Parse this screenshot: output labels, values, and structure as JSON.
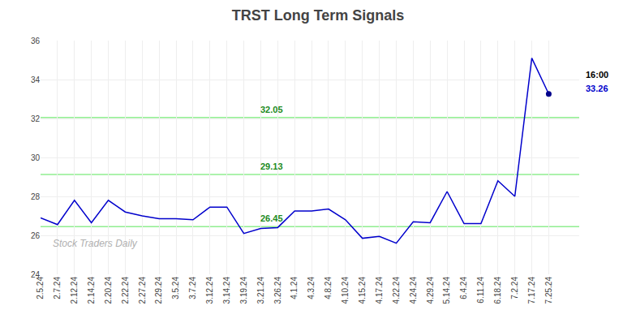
{
  "chart_data": {
    "type": "line",
    "title": "TRST Long Term Signals",
    "categories": [
      "2.5.24",
      "2.7.24",
      "2.12.24",
      "2.14.24",
      "2.20.24",
      "2.22.24",
      "2.27.24",
      "2.29.24",
      "3.5.24",
      "3.7.24",
      "3.12.24",
      "3.14.24",
      "3.19.24",
      "3.21.24",
      "3.26.24",
      "4.1.24",
      "4.3.24",
      "4.8.24",
      "4.10.24",
      "4.15.24",
      "4.17.24",
      "4.22.24",
      "4.24.24",
      "4.29.24",
      "5.14.24",
      "6.4.24",
      "6.11.24",
      "6.18.24",
      "7.2.24",
      "7.17.24",
      "7.25.24"
    ],
    "values": [
      26.9,
      26.55,
      27.8,
      26.65,
      27.8,
      27.2,
      27.0,
      26.85,
      26.85,
      26.8,
      27.45,
      27.45,
      26.1,
      26.35,
      26.4,
      27.25,
      27.25,
      27.35,
      26.8,
      25.85,
      25.95,
      25.6,
      26.7,
      26.65,
      28.25,
      26.6,
      26.6,
      28.8,
      28.0,
      35.1,
      33.26
    ],
    "color": "#0000cc",
    "marker": "circle",
    "marker_color": "#00008b",
    "hlines": [
      {
        "value": 26.45,
        "label": "26.45",
        "color": "#90ee90",
        "label_color": "#228B22"
      },
      {
        "value": 29.13,
        "label": "29.13",
        "color": "#90ee90",
        "label_color": "#228B22"
      },
      {
        "value": 32.05,
        "label": "32.05",
        "color": "#90ee90",
        "label_color": "#228B22"
      }
    ],
    "annotations": [
      {
        "text": "16:00",
        "color": "#000000"
      },
      {
        "text": "33.26",
        "color": "#0000cc"
      }
    ],
    "watermark": {
      "text": "Stock Traders Daily",
      "color": "#b0b0b0"
    },
    "ylim": [
      24,
      36
    ],
    "yticks": [
      24,
      26,
      28,
      30,
      32,
      34,
      36
    ],
    "grid": true
  }
}
